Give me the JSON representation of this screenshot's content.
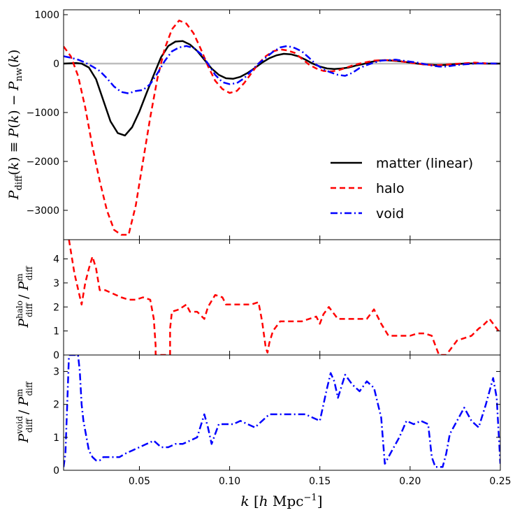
{
  "chart_data": [
    {
      "type": "line",
      "panel": "top",
      "ylabel": "P_diff(k) ≡ P(k) − P_nw(k)",
      "ylim": [
        -3600,
        1100
      ],
      "xlim": [
        0.008,
        0.25
      ],
      "yticks": [
        1000,
        0,
        -1000,
        -2000,
        -3000
      ],
      "ytick_labels": [
        "1000",
        "0",
        "−1000",
        "−2000",
        "−3000"
      ],
      "zero_line": true,
      "legend_position": "lower-right",
      "series": [
        {
          "name": "matter (linear)",
          "style": "solid",
          "color": "#000000",
          "x": [
            0.008,
            0.015,
            0.018,
            0.022,
            0.026,
            0.03,
            0.034,
            0.038,
            0.042,
            0.046,
            0.05,
            0.054,
            0.058,
            0.062,
            0.066,
            0.07,
            0.074,
            0.078,
            0.082,
            0.086,
            0.09,
            0.094,
            0.098,
            0.102,
            0.106,
            0.11,
            0.114,
            0.118,
            0.122,
            0.126,
            0.13,
            0.134,
            0.138,
            0.142,
            0.146,
            0.15,
            0.154,
            0.158,
            0.162,
            0.166,
            0.17,
            0.174,
            0.178,
            0.182,
            0.186,
            0.19,
            0.194,
            0.198,
            0.202,
            0.206,
            0.21,
            0.214,
            0.218,
            0.222,
            0.226,
            0.23,
            0.234,
            0.238,
            0.242,
            0.246,
            0.25
          ],
          "y": [
            0,
            10,
            0,
            -80,
            -320,
            -750,
            -1180,
            -1420,
            -1470,
            -1300,
            -980,
            -600,
            -230,
            130,
            360,
            450,
            460,
            390,
            260,
            80,
            -100,
            -230,
            -300,
            -310,
            -270,
            -190,
            -90,
            20,
            110,
            170,
            200,
            190,
            150,
            80,
            0,
            -60,
            -100,
            -110,
            -100,
            -80,
            -40,
            -10,
            30,
            60,
            70,
            60,
            50,
            30,
            10,
            -10,
            -20,
            -30,
            -30,
            -20,
            -10,
            0,
            5,
            5,
            0,
            0,
            0
          ]
        },
        {
          "name": "halo",
          "style": "dashed",
          "color": "#ff0000",
          "x": [
            0.008,
            0.012,
            0.016,
            0.02,
            0.024,
            0.028,
            0.032,
            0.036,
            0.04,
            0.044,
            0.048,
            0.052,
            0.056,
            0.06,
            0.064,
            0.068,
            0.072,
            0.076,
            0.08,
            0.084,
            0.088,
            0.092,
            0.096,
            0.1,
            0.104,
            0.108,
            0.112,
            0.116,
            0.12,
            0.124,
            0.128,
            0.132,
            0.136,
            0.14,
            0.144,
            0.148,
            0.152,
            0.156,
            0.16,
            0.164,
            0.168,
            0.172,
            0.176,
            0.18,
            0.184,
            0.188,
            0.192,
            0.196,
            0.2,
            0.204,
            0.208,
            0.212,
            0.216,
            0.22,
            0.224,
            0.228,
            0.232,
            0.236,
            0.24,
            0.244,
            0.248,
            0.25
          ],
          "y": [
            350,
            150,
            -250,
            -900,
            -1700,
            -2400,
            -3000,
            -3400,
            -3500,
            -3500,
            -2900,
            -2000,
            -1100,
            -300,
            300,
            700,
            880,
            820,
            620,
            300,
            -50,
            -350,
            -520,
            -600,
            -560,
            -400,
            -200,
            0,
            150,
            250,
            290,
            270,
            220,
            100,
            -20,
            -100,
            -150,
            -160,
            -140,
            -90,
            -40,
            0,
            30,
            60,
            70,
            70,
            60,
            40,
            20,
            0,
            -20,
            -30,
            -30,
            -20,
            -10,
            0,
            10,
            20,
            10,
            0,
            0,
            0
          ]
        },
        {
          "name": "void",
          "style": "dashdot",
          "color": "#0000ff",
          "x": [
            0.008,
            0.012,
            0.016,
            0.02,
            0.024,
            0.028,
            0.032,
            0.036,
            0.04,
            0.044,
            0.048,
            0.052,
            0.056,
            0.06,
            0.064,
            0.068,
            0.072,
            0.076,
            0.08,
            0.084,
            0.088,
            0.092,
            0.096,
            0.1,
            0.104,
            0.108,
            0.112,
            0.116,
            0.12,
            0.124,
            0.128,
            0.132,
            0.136,
            0.14,
            0.144,
            0.148,
            0.152,
            0.156,
            0.16,
            0.164,
            0.168,
            0.172,
            0.176,
            0.18,
            0.184,
            0.188,
            0.192,
            0.196,
            0.2,
            0.204,
            0.208,
            0.212,
            0.216,
            0.22,
            0.224,
            0.228,
            0.232,
            0.236,
            0.24,
            0.244,
            0.248,
            0.25
          ],
          "y": [
            150,
            120,
            80,
            20,
            -60,
            -150,
            -300,
            -470,
            -580,
            -610,
            -560,
            -540,
            -420,
            -200,
            50,
            250,
            330,
            360,
            320,
            200,
            0,
            -230,
            -380,
            -420,
            -400,
            -300,
            -150,
            0,
            120,
            240,
            330,
            360,
            320,
            250,
            120,
            -20,
            -120,
            -180,
            -230,
            -250,
            -190,
            -90,
            -30,
            20,
            60,
            70,
            80,
            60,
            40,
            20,
            -10,
            -40,
            -60,
            -60,
            -40,
            -20,
            -10,
            0,
            5,
            5,
            0,
            0
          ]
        }
      ]
    },
    {
      "type": "line",
      "panel": "middle",
      "ylabel": "P^halo_diff / P^m_diff",
      "ylim": [
        0,
        4.8
      ],
      "xlim": [
        0.008,
        0.25
      ],
      "yticks": [
        0,
        1,
        2,
        3,
        4
      ],
      "ytick_labels": [
        "0",
        "1",
        "2",
        "3",
        "4"
      ],
      "series": [
        {
          "name": "halo / matter",
          "style": "dashed",
          "color": "#ff0000",
          "x": [
            0.011,
            0.014,
            0.018,
            0.02,
            0.022,
            0.024,
            0.026,
            0.028,
            0.031,
            0.034,
            0.037,
            0.04,
            0.044,
            0.048,
            0.052,
            0.056,
            0.058,
            0.059,
            0.059,
            0.067,
            0.067,
            0.068,
            0.072,
            0.076,
            0.078,
            0.082,
            0.086,
            0.088,
            0.092,
            0.096,
            0.098,
            0.1,
            0.104,
            0.108,
            0.112,
            0.116,
            0.118,
            0.12,
            0.121,
            0.122,
            0.124,
            0.128,
            0.132,
            0.136,
            0.14,
            0.144,
            0.148,
            0.15,
            0.152,
            0.155,
            0.158,
            0.16,
            0.164,
            0.168,
            0.172,
            0.176,
            0.18,
            0.184,
            0.188,
            0.192,
            0.196,
            0.2,
            0.204,
            0.208,
            0.212,
            0.214,
            0.216,
            0.22,
            0.222,
            0.226,
            0.23,
            0.234,
            0.238,
            0.24,
            0.244,
            0.246,
            0.25
          ],
          "y": [
            4.8,
            3.4,
            2.1,
            3.0,
            3.6,
            4.1,
            3.6,
            2.7,
            2.7,
            2.6,
            2.5,
            2.4,
            2.3,
            2.3,
            2.4,
            2.3,
            1.5,
            0.4,
            0,
            0,
            1.1,
            1.8,
            1.9,
            2.1,
            1.8,
            1.8,
            1.5,
            2.0,
            2.5,
            2.4,
            2.1,
            2.1,
            2.1,
            2.1,
            2.1,
            2.2,
            1.4,
            0.3,
            0.1,
            0.5,
            1.0,
            1.4,
            1.4,
            1.4,
            1.4,
            1.5,
            1.6,
            1.3,
            1.7,
            2.0,
            1.7,
            1.5,
            1.5,
            1.5,
            1.5,
            1.5,
            1.9,
            1.3,
            0.8,
            0.8,
            0.8,
            0.8,
            0.9,
            0.9,
            0.8,
            0.4,
            0,
            0,
            0.2,
            0.6,
            0.7,
            0.8,
            1.1,
            1.2,
            1.5,
            1.3,
            0.9
          ]
        }
      ]
    },
    {
      "type": "line",
      "panel": "bottom",
      "ylabel": "P^void_diff / P^m_diff",
      "ylim": [
        0,
        3.5
      ],
      "xlim": [
        0.008,
        0.25
      ],
      "xticks": [
        0.05,
        0.1,
        0.15,
        0.2,
        0.25
      ],
      "xtick_labels": [
        "0.05",
        "0.10",
        "0.15",
        "0.20",
        "0.25"
      ],
      "yticks": [
        0,
        1,
        2,
        3
      ],
      "ytick_labels": [
        "0",
        "1",
        "2",
        "3"
      ],
      "xlabel": "k [h Mpc^-1]",
      "series": [
        {
          "name": "void / matter",
          "style": "dashdot",
          "color": "#0000ff",
          "x": [
            0.008,
            0.009,
            0.01,
            0.011,
            0.012,
            0.013,
            0.014,
            0.016,
            0.017,
            0.018,
            0.019,
            0.02,
            0.022,
            0.024,
            0.026,
            0.028,
            0.03,
            0.033,
            0.036,
            0.039,
            0.042,
            0.046,
            0.05,
            0.054,
            0.058,
            0.062,
            0.066,
            0.07,
            0.074,
            0.078,
            0.082,
            0.086,
            0.088,
            0.09,
            0.094,
            0.098,
            0.102,
            0.106,
            0.11,
            0.114,
            0.118,
            0.122,
            0.126,
            0.13,
            0.134,
            0.138,
            0.142,
            0.146,
            0.15,
            0.154,
            0.156,
            0.158,
            0.16,
            0.164,
            0.168,
            0.172,
            0.176,
            0.18,
            0.184,
            0.186,
            0.19,
            0.194,
            0.198,
            0.202,
            0.206,
            0.21,
            0.212,
            0.214,
            0.218,
            0.22,
            0.222,
            0.226,
            0.23,
            0.234,
            0.238,
            0.242,
            0.246,
            0.248,
            0.25
          ],
          "y": [
            0.1,
            0.5,
            2.0,
            3.5,
            3.5,
            3.5,
            3.5,
            3.5,
            3.0,
            2.0,
            1.5,
            1.2,
            0.6,
            0.4,
            0.3,
            0.3,
            0.4,
            0.4,
            0.4,
            0.4,
            0.5,
            0.6,
            0.7,
            0.8,
            0.9,
            0.7,
            0.7,
            0.8,
            0.8,
            0.9,
            1.0,
            1.7,
            1.3,
            0.8,
            1.4,
            1.4,
            1.4,
            1.5,
            1.4,
            1.3,
            1.5,
            1.7,
            1.7,
            1.7,
            1.7,
            1.7,
            1.7,
            1.6,
            1.5,
            2.5,
            2.95,
            2.7,
            2.2,
            2.9,
            2.6,
            2.4,
            2.7,
            2.5,
            1.6,
            0.2,
            0.6,
            1.0,
            1.5,
            1.4,
            1.5,
            1.4,
            0.4,
            0.1,
            0.1,
            0.5,
            1.1,
            1.5,
            1.9,
            1.5,
            1.3,
            2.0,
            2.8,
            2.2,
            0.2
          ]
        }
      ]
    }
  ]
}
